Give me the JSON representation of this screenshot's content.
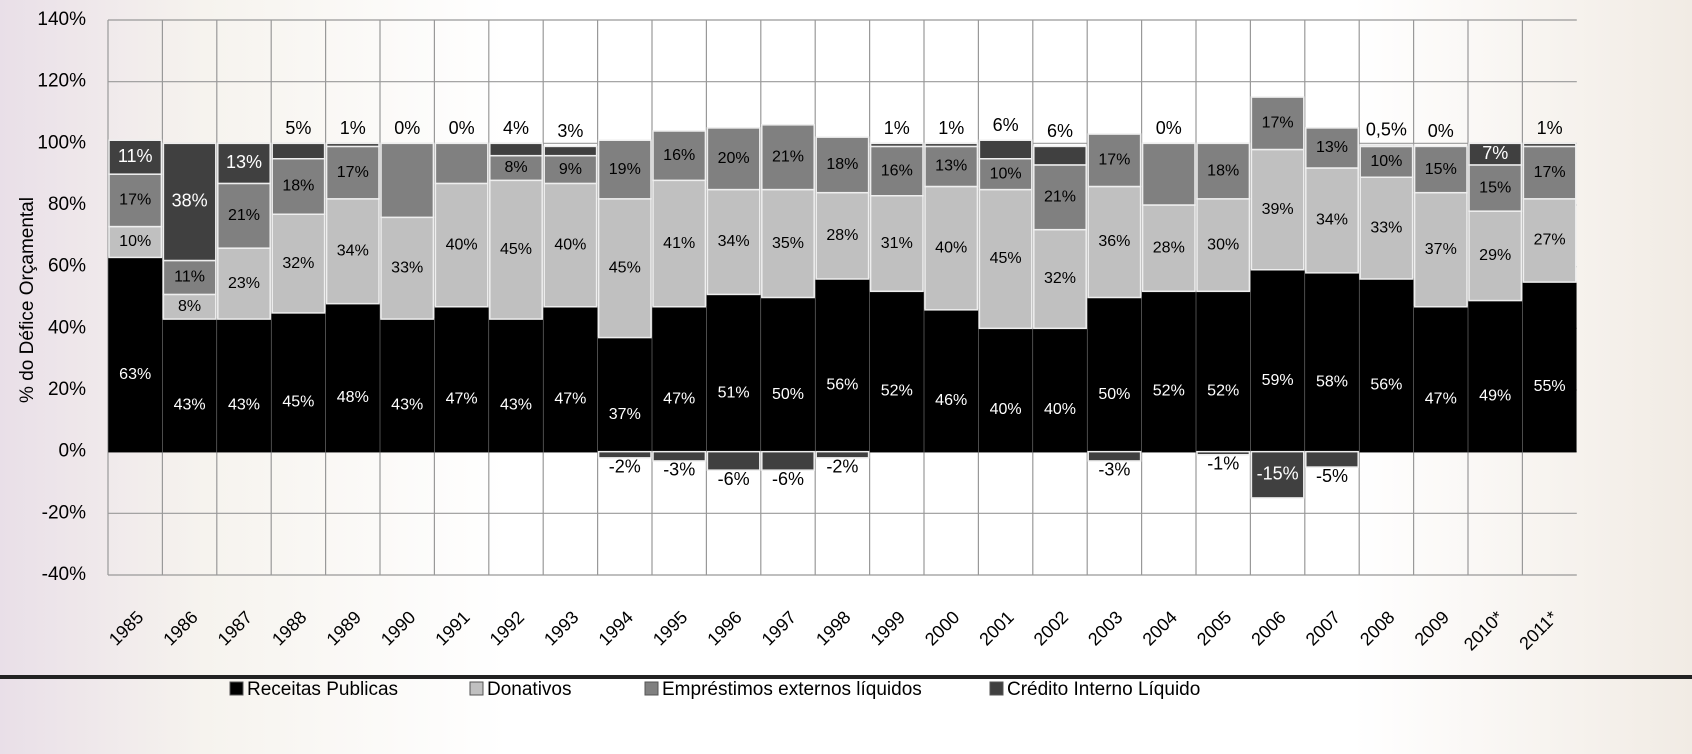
{
  "chart_data": {
    "type": "stacked_bar",
    "y_label": "% do Défice Orçamental",
    "categories": [
      "1985",
      "1986",
      "1987",
      "1988",
      "1989",
      "1990",
      "1991",
      "1992",
      "1993",
      "1994",
      "1995",
      "1996",
      "1997",
      "1998",
      "1999",
      "2000",
      "2001",
      "2002",
      "2003",
      "2004",
      "2005",
      "2006",
      "2007",
      "2008",
      "2009",
      "2010*",
      "2011*"
    ],
    "series": [
      {
        "name": "Receitas Publicas",
        "color": "#000000",
        "values": [
          63,
          43,
          43,
          45,
          48,
          43,
          47,
          43,
          47,
          37,
          47,
          51,
          50,
          56,
          52,
          46,
          40,
          40,
          50,
          52,
          52,
          59,
          58,
          56,
          47,
          49,
          55
        ],
        "value_labels": [
          "63%",
          "43%",
          "43%",
          "45%",
          "48%",
          "43%",
          "47%",
          "43%",
          "47%",
          "37%",
          "47%",
          "51%",
          "50%",
          "56%",
          "52%",
          "46%",
          "40%",
          "40%",
          "50%",
          "52%",
          "52%",
          "59%",
          "58%",
          "56%",
          "47%",
          "49%",
          "55%"
        ]
      },
      {
        "name": "Donativos",
        "color": "#c0c0c0",
        "values": [
          10,
          8,
          23,
          32,
          34,
          33,
          40,
          45,
          40,
          45,
          41,
          34,
          35,
          28,
          31,
          40,
          45,
          32,
          36,
          28,
          30,
          39,
          34,
          33,
          37,
          29,
          27
        ],
        "value_labels": [
          "10%",
          "8%",
          "23%",
          "32%",
          "34%",
          "33%",
          "40%",
          "45%",
          "40%",
          "45%",
          "41%",
          "34%",
          "35%",
          "28%",
          "31%",
          "40%",
          "45%",
          "32%",
          "36%",
          "28%",
          "30%",
          "39%",
          "34%",
          "33%",
          "37%",
          "29%",
          "27%"
        ]
      },
      {
        "name": "Empréstimos externos líquidos",
        "color": "#808080",
        "values": [
          17,
          11,
          21,
          18,
          17,
          24,
          13,
          8,
          9,
          19,
          16,
          20,
          21,
          18,
          16,
          13,
          10,
          21,
          17,
          20,
          18,
          17,
          13,
          10,
          15,
          15,
          17
        ],
        "value_labels": [
          "17%",
          "11%",
          "21%",
          "18%",
          "17%",
          null,
          null,
          "8%",
          "9%",
          "19%",
          "16%",
          "20%",
          "21%",
          "18%",
          "16%",
          "13%",
          "10%",
          "21%",
          "17%",
          null,
          "18%",
          "17%",
          "13%",
          "10%",
          "15%",
          "15%",
          "17%"
        ]
      },
      {
        "name": "Crédito Interno Líquido",
        "color": "#404040",
        "values": [
          11,
          38,
          13,
          5,
          1,
          0,
          0,
          4,
          3,
          -2,
          -3,
          -6,
          -6,
          -2,
          1,
          1,
          6,
          6,
          -3,
          0,
          -1,
          -15,
          -5,
          0.5,
          0,
          7,
          1
        ],
        "value_labels": [
          "11%",
          "38%",
          "13%",
          "5%",
          "1%",
          "0%",
          "0%",
          "4%",
          "3%",
          "-2%",
          "-3%",
          "-6%",
          "-6%",
          "-2%",
          "1%",
          "1%",
          "6%",
          "6%",
          "-3%",
          "0%",
          "-1%",
          "-15%",
          "-5%",
          "0,5%",
          "0%",
          "7%",
          "1%"
        ]
      }
    ],
    "ylim": [
      -40,
      140
    ],
    "yticks": [
      {
        "value": -40,
        "label": "-40%"
      },
      {
        "value": -20,
        "label": "-20%"
      },
      {
        "value": 0,
        "label": "0%"
      },
      {
        "value": 20,
        "label": "20%"
      },
      {
        "value": 40,
        "label": "40%"
      },
      {
        "value": 60,
        "label": "60%"
      },
      {
        "value": 80,
        "label": "80%"
      },
      {
        "value": 100,
        "label": "100%"
      },
      {
        "value": 120,
        "label": "120%"
      },
      {
        "value": 140,
        "label": "140%"
      }
    ],
    "grid": true
  }
}
